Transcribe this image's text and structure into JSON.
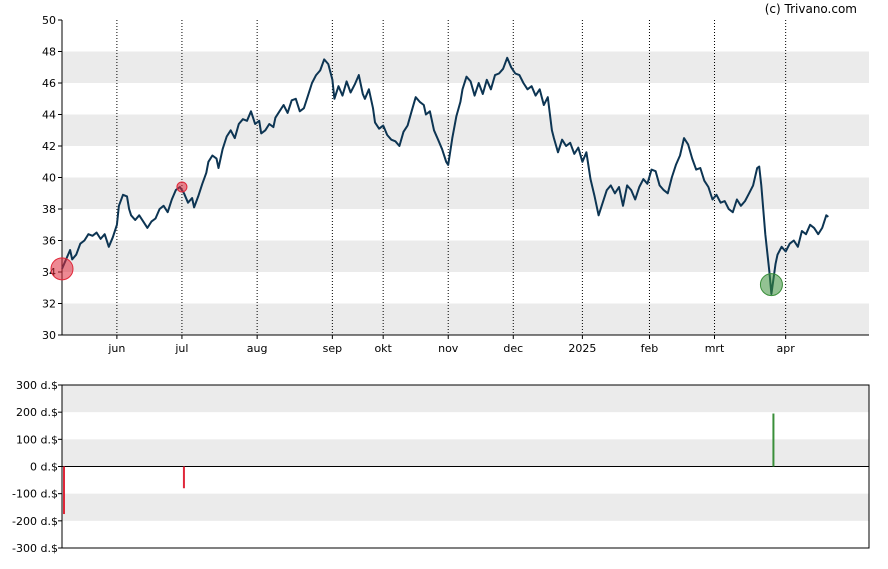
{
  "credit": "(c) Trivano.com",
  "colors": {
    "price_line": "#0d3553",
    "band": "#ebebeb",
    "buy": "#3a8f3a",
    "sell": "#e0283a",
    "axis": "#000000"
  },
  "chart_data": [
    {
      "type": "line",
      "title": "",
      "xlabel": "",
      "ylabel": "",
      "ylim": [
        30,
        50
      ],
      "y_ticks": [
        "30",
        "32",
        "34",
        "36",
        "38",
        "40",
        "42",
        "44",
        "46",
        "48",
        "50"
      ],
      "x_ticks": [
        {
          "label": "jun",
          "x": 27
        },
        {
          "label": "jul",
          "x": 59
        },
        {
          "label": "aug",
          "x": 96
        },
        {
          "label": "sep",
          "x": 133
        },
        {
          "label": "okt",
          "x": 158
        },
        {
          "label": "nov",
          "x": 190
        },
        {
          "label": "dec",
          "x": 222
        },
        {
          "label": "2025",
          "x": 256
        },
        {
          "label": "feb",
          "x": 289
        },
        {
          "label": "mrt",
          "x": 321
        },
        {
          "label": "apr",
          "x": 356
        }
      ],
      "x_range": [
        0,
        397
      ],
      "grid": "alternating horizontal bands, dotted vertical month lines",
      "series": [
        {
          "points": [
            [
              0,
              34.2
            ],
            [
              2,
              34.8
            ],
            [
              4,
              35.4
            ],
            [
              5,
              34.8
            ],
            [
              7,
              35.1
            ],
            [
              9,
              35.8
            ],
            [
              11,
              36.0
            ],
            [
              13,
              36.4
            ],
            [
              15,
              36.3
            ],
            [
              17,
              36.5
            ],
            [
              19,
              36.1
            ],
            [
              21,
              36.4
            ],
            [
              23,
              35.6
            ],
            [
              25,
              36.2
            ],
            [
              27,
              37.0
            ],
            [
              28,
              38.2
            ],
            [
              30,
              38.9
            ],
            [
              32,
              38.8
            ],
            [
              33,
              38.0
            ],
            [
              34,
              37.6
            ],
            [
              36,
              37.3
            ],
            [
              38,
              37.6
            ],
            [
              40,
              37.2
            ],
            [
              42,
              36.8
            ],
            [
              44,
              37.2
            ],
            [
              46,
              37.4
            ],
            [
              48,
              38.0
            ],
            [
              50,
              38.2
            ],
            [
              52,
              37.8
            ],
            [
              54,
              38.6
            ],
            [
              56,
              39.2
            ],
            [
              58,
              39.4
            ],
            [
              60,
              39.0
            ],
            [
              62,
              38.4
            ],
            [
              64,
              38.7
            ],
            [
              65,
              38.1
            ],
            [
              67,
              38.8
            ],
            [
              69,
              39.6
            ],
            [
              71,
              40.3
            ],
            [
              72,
              41.0
            ],
            [
              74,
              41.4
            ],
            [
              76,
              41.2
            ],
            [
              77,
              40.6
            ],
            [
              79,
              41.8
            ],
            [
              81,
              42.6
            ],
            [
              83,
              43.0
            ],
            [
              85,
              42.5
            ],
            [
              87,
              43.4
            ],
            [
              89,
              43.7
            ],
            [
              91,
              43.6
            ],
            [
              93,
              44.2
            ],
            [
              95,
              43.4
            ],
            [
              97,
              43.6
            ],
            [
              98,
              42.8
            ],
            [
              100,
              43.0
            ],
            [
              102,
              43.4
            ],
            [
              104,
              43.2
            ],
            [
              105,
              43.8
            ],
            [
              107,
              44.2
            ],
            [
              109,
              44.6
            ],
            [
              111,
              44.1
            ],
            [
              113,
              44.9
            ],
            [
              115,
              45.0
            ],
            [
              117,
              44.2
            ],
            [
              119,
              44.4
            ],
            [
              121,
              45.2
            ],
            [
              123,
              46.0
            ],
            [
              125,
              46.5
            ],
            [
              127,
              46.8
            ],
            [
              129,
              47.5
            ],
            [
              131,
              47.2
            ],
            [
              133,
              46.2
            ],
            [
              134,
              45.0
            ],
            [
              136,
              45.8
            ],
            [
              138,
              45.2
            ],
            [
              140,
              46.1
            ],
            [
              142,
              45.4
            ],
            [
              144,
              45.9
            ],
            [
              146,
              46.5
            ],
            [
              148,
              45.3
            ],
            [
              149,
              45.0
            ],
            [
              151,
              45.6
            ],
            [
              153,
              44.4
            ],
            [
              154,
              43.5
            ],
            [
              156,
              43.1
            ],
            [
              158,
              43.3
            ],
            [
              160,
              42.7
            ],
            [
              162,
              42.4
            ],
            [
              164,
              42.3
            ],
            [
              166,
              42.0
            ],
            [
              168,
              42.9
            ],
            [
              170,
              43.3
            ],
            [
              172,
              44.2
            ],
            [
              174,
              45.1
            ],
            [
              176,
              44.8
            ],
            [
              178,
              44.6
            ],
            [
              179,
              44.0
            ],
            [
              181,
              44.2
            ],
            [
              183,
              43.0
            ],
            [
              185,
              42.4
            ],
            [
              187,
              41.8
            ],
            [
              189,
              41.0
            ],
            [
              190,
              40.8
            ],
            [
              192,
              42.5
            ],
            [
              194,
              43.9
            ],
            [
              196,
              44.8
            ],
            [
              197,
              45.6
            ],
            [
              199,
              46.4
            ],
            [
              201,
              46.1
            ],
            [
              203,
              45.2
            ],
            [
              205,
              46.0
            ],
            [
              207,
              45.3
            ],
            [
              209,
              46.2
            ],
            [
              211,
              45.6
            ],
            [
              213,
              46.5
            ],
            [
              215,
              46.6
            ],
            [
              217,
              46.9
            ],
            [
              219,
              47.6
            ],
            [
              221,
              47.0
            ],
            [
              223,
              46.6
            ],
            [
              225,
              46.5
            ],
            [
              227,
              46.0
            ],
            [
              229,
              45.6
            ],
            [
              231,
              45.8
            ],
            [
              233,
              45.2
            ],
            [
              235,
              45.6
            ],
            [
              237,
              44.6
            ],
            [
              239,
              45.1
            ],
            [
              241,
              43.0
            ],
            [
              242,
              42.5
            ],
            [
              244,
              41.6
            ],
            [
              246,
              42.4
            ],
            [
              248,
              42.0
            ],
            [
              250,
              42.2
            ],
            [
              252,
              41.5
            ],
            [
              254,
              41.9
            ],
            [
              256,
              41.0
            ],
            [
              258,
              41.6
            ],
            [
              260,
              39.9
            ],
            [
              262,
              38.8
            ],
            [
              264,
              37.6
            ],
            [
              266,
              38.4
            ],
            [
              268,
              39.2
            ],
            [
              270,
              39.5
            ],
            [
              272,
              39.0
            ],
            [
              274,
              39.4
            ],
            [
              276,
              38.2
            ],
            [
              278,
              39.5
            ],
            [
              280,
              39.2
            ],
            [
              282,
              38.6
            ],
            [
              284,
              39.4
            ],
            [
              286,
              39.9
            ],
            [
              288,
              39.6
            ],
            [
              290,
              40.5
            ],
            [
              292,
              40.4
            ],
            [
              294,
              39.5
            ],
            [
              296,
              39.2
            ],
            [
              298,
              39.0
            ],
            [
              300,
              40.0
            ],
            [
              302,
              40.8
            ],
            [
              304,
              41.4
            ],
            [
              306,
              42.5
            ],
            [
              308,
              42.1
            ],
            [
              310,
              41.2
            ],
            [
              312,
              40.5
            ],
            [
              314,
              40.6
            ],
            [
              316,
              39.8
            ],
            [
              318,
              39.4
            ],
            [
              320,
              38.6
            ],
            [
              322,
              38.9
            ],
            [
              324,
              38.4
            ],
            [
              326,
              38.5
            ],
            [
              328,
              38.0
            ],
            [
              330,
              37.8
            ],
            [
              332,
              38.6
            ],
            [
              334,
              38.2
            ],
            [
              336,
              38.5
            ],
            [
              338,
              39.0
            ],
            [
              340,
              39.5
            ],
            [
              342,
              40.6
            ],
            [
              343,
              40.7
            ],
            [
              344,
              39.5
            ],
            [
              346,
              36.4
            ],
            [
              348,
              34.0
            ],
            [
              349,
              32.6
            ],
            [
              351,
              34.5
            ],
            [
              352,
              35.1
            ],
            [
              354,
              35.6
            ],
            [
              356,
              35.3
            ],
            [
              358,
              35.8
            ],
            [
              360,
              36.0
            ],
            [
              362,
              35.6
            ],
            [
              364,
              36.6
            ],
            [
              366,
              36.4
            ],
            [
              368,
              37.0
            ],
            [
              370,
              36.8
            ],
            [
              372,
              36.4
            ],
            [
              374,
              36.8
            ],
            [
              376,
              37.6
            ],
            [
              377,
              37.5
            ]
          ]
        }
      ],
      "markers": [
        {
          "x": 0,
          "y": 34.2,
          "kind": "sell",
          "size": "large"
        },
        {
          "x": 59,
          "y": 39.4,
          "kind": "sell",
          "size": "small"
        },
        {
          "x": 349,
          "y": 33.2,
          "kind": "buy",
          "size": "large"
        }
      ]
    },
    {
      "type": "bar",
      "title": "",
      "ylim": [
        -300,
        300
      ],
      "y_ticks": [
        "300 d.$",
        "200 d.$",
        "100 d.$",
        "0 d.$",
        "-100 d.$",
        "-200 d.$",
        "-300 d.$"
      ],
      "bars": [
        {
          "x": 0,
          "value": -175,
          "kind": "sell"
        },
        {
          "x": 59,
          "value": -80,
          "kind": "sell"
        },
        {
          "x": 349,
          "value": 195,
          "kind": "buy"
        }
      ]
    }
  ]
}
